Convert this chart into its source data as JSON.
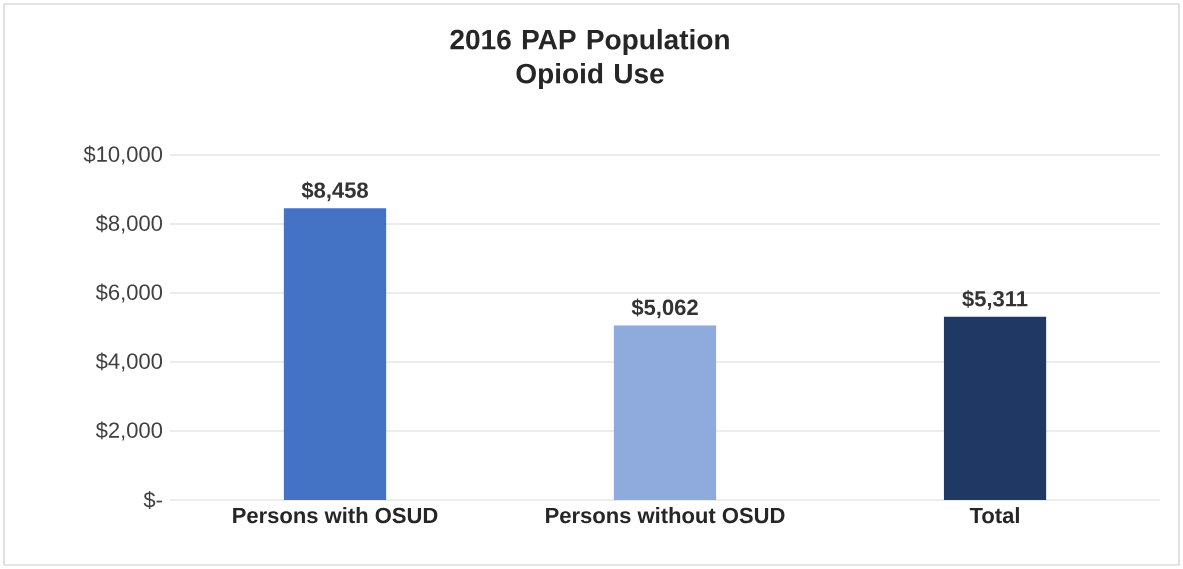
{
  "chart_data": {
    "type": "bar",
    "title": "2016 PAP Population Opioid Use",
    "categories": [
      "Persons with OSUD",
      "Persons without OSUD",
      "Total"
    ],
    "values": [
      8458,
      5062,
      5311
    ],
    "colors": [
      "#4472c4",
      "#8faadc",
      "#203864"
    ],
    "value_labels": [
      "$8,458",
      "$5,062",
      "$5,311"
    ],
    "ylim": [
      0,
      10000
    ],
    "yticks": [
      {
        "value": 0,
        "label": "$-"
      },
      {
        "value": 2000,
        "label": "$2,000"
      },
      {
        "value": 4000,
        "label": "$4,000"
      },
      {
        "value": 6000,
        "label": "$6,000"
      },
      {
        "value": 8000,
        "label": "$8,000"
      },
      {
        "value": 10000,
        "label": "$10,000"
      }
    ],
    "grid": "y"
  }
}
